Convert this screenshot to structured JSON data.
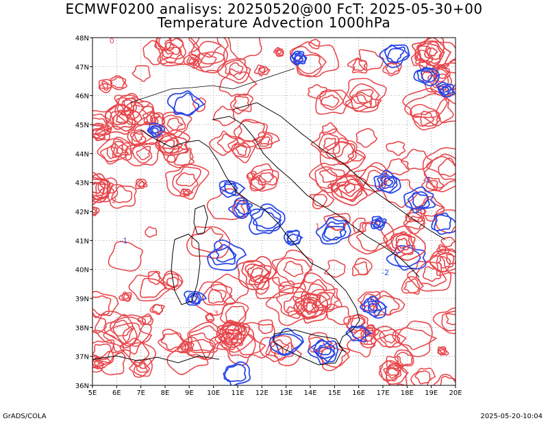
{
  "title": {
    "line1": "ECMWF0200 analisys: 20250520@00 FcT: 2025-05-30+00",
    "line2": "Temperature Advection 1000hPa"
  },
  "axes": {
    "lon_labels": [
      "5E",
      "6E",
      "7E",
      "8E",
      "9E",
      "10E",
      "11E",
      "12E",
      "13E",
      "14E",
      "15E",
      "16E",
      "17E",
      "18E",
      "19E",
      "20E"
    ],
    "lat_labels": [
      "36N",
      "37N",
      "38N",
      "39N",
      "40N",
      "41N",
      "42N",
      "43N",
      "44N",
      "45N",
      "46N",
      "47N",
      "48N"
    ],
    "lon_range": [
      5,
      20
    ],
    "lat_range": [
      36,
      48
    ],
    "grid": "dotted"
  },
  "colors": {
    "positive_contours": "#e8474c",
    "negative_contours": "#2846e6",
    "coastline": "#000000",
    "grid": "#999999"
  },
  "contour_labels": {
    "positive": [
      "0",
      "1",
      "2",
      "3"
    ],
    "negative": [
      "-1",
      "-2"
    ]
  },
  "footer": {
    "left": "GrADS/COLA",
    "right": "2025-05-20-10:04"
  }
}
